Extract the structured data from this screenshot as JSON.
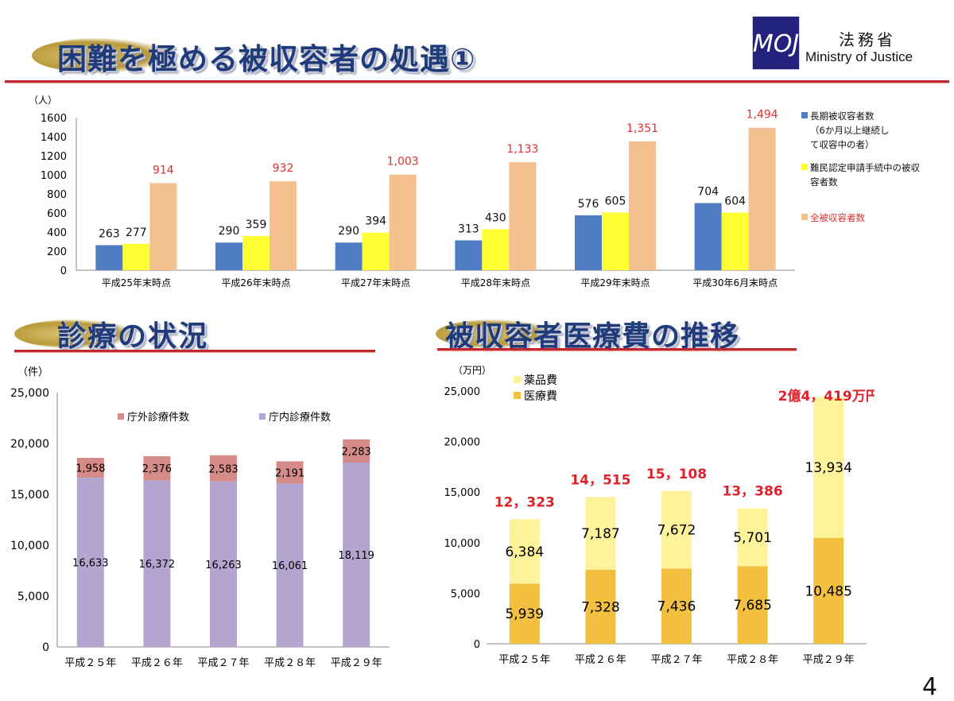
{
  "header": {
    "title": "困難を極める被収容者の処遇①",
    "ministry_jp": "法務省",
    "ministry_en": "Ministry of Justice",
    "logo_text": "MOJ"
  },
  "page_number": "4",
  "sections": {
    "medical_title": "診療の状況",
    "cost_title": "被収容者医療費の推移"
  },
  "colors": {
    "title_blue": "#1f3b7a",
    "accent_red": "#c1272d",
    "bar_blue": "#4f7cc2",
    "bar_yellow": "#ffff33",
    "bar_peach": "#f4c08f",
    "bar_pink": "#d58c88",
    "bar_lavender": "#b3a5cf",
    "bar_lightyellow": "#fdf39b",
    "bar_gold": "#f2bf3e"
  },
  "chart_data": [
    {
      "id": "detainees",
      "type": "bar",
      "unit_label": "（人）",
      "ylim": [
        0,
        1600
      ],
      "yticks": [
        "0",
        "200",
        "400",
        "600",
        "800",
        "1000",
        "1200",
        "1400",
        "1600"
      ],
      "categories": [
        "平成25年末時点",
        "平成26年末時点",
        "平成27年末時点",
        "平成28年末時点",
        "平成29年末時点",
        "平成30年6月末時点"
      ],
      "series": [
        {
          "name": "長期被収容者数",
          "legend_lines": [
            "長期被収容者数",
            "（6か月以上継続し",
            "て収容中の者）"
          ],
          "values": [
            263,
            290,
            290,
            313,
            576,
            704
          ],
          "labels": [
            "263",
            "290",
            "290",
            "313",
            "576",
            "704"
          ]
        },
        {
          "name": "難民認定申請手続中の被収容者数",
          "legend_lines": [
            "難民認定申請手続中の被収",
            "容者数"
          ],
          "values": [
            277,
            359,
            394,
            430,
            605,
            604
          ],
          "labels": [
            "277",
            "359",
            "394",
            "430",
            "605",
            "604"
          ]
        },
        {
          "name": "全被収容者数",
          "legend_lines": [
            "全被収容者数"
          ],
          "values": [
            914,
            932,
            1003,
            1133,
            1351,
            1494
          ],
          "labels": [
            "914",
            "932",
            "1,003",
            "1,133",
            "1,351",
            "1,494"
          ]
        }
      ]
    },
    {
      "id": "consultations",
      "type": "bar",
      "stacked": true,
      "unit_label": "（件）",
      "ylim": [
        0,
        25000
      ],
      "yticks": [
        "0",
        "5,000",
        "10,000",
        "15,000",
        "20,000",
        "25,000"
      ],
      "categories": [
        "平成２５年",
        "平成２６年",
        "平成２７年",
        "平成２８年",
        "平成２９年"
      ],
      "series": [
        {
          "name": "庁内診療件数",
          "values": [
            16633,
            16372,
            16263,
            16061,
            18119
          ],
          "labels": [
            "16,633",
            "16,372",
            "16,263",
            "16,061",
            "18,119"
          ]
        },
        {
          "name": "庁外診療件数",
          "values": [
            1958,
            2376,
            2583,
            2191,
            2283
          ],
          "labels": [
            "1,958",
            "2,376",
            "2,583",
            "2,191",
            "2,283"
          ]
        }
      ],
      "legend": [
        "庁外診療件数",
        "庁内診療件数"
      ]
    },
    {
      "id": "medical_costs",
      "type": "bar",
      "stacked": true,
      "unit_label": "（万円）",
      "ylim": [
        0,
        25000
      ],
      "yticks": [
        "0",
        "5,000",
        "10,000",
        "15,000",
        "20,000",
        "25,000"
      ],
      "categories": [
        "平成２５年",
        "平成２６年",
        "平成２７年",
        "平成２８年",
        "平成２９年"
      ],
      "series": [
        {
          "name": "医療費",
          "values": [
            5939,
            7328,
            7436,
            7685,
            10485
          ],
          "labels": [
            "5,939",
            "7,328",
            "7,436",
            "7,685",
            "10,485"
          ]
        },
        {
          "name": "薬品費",
          "values": [
            6384,
            7187,
            7672,
            5701,
            13934
          ],
          "labels": [
            "6,384",
            "7,187",
            "7,672",
            "5,701",
            "13,934"
          ]
        }
      ],
      "totals": [
        "12，323",
        "14，515",
        "15，108",
        "13，386",
        "2億4，419万円"
      ],
      "legend": [
        "薬品費",
        "医療費"
      ]
    }
  ]
}
